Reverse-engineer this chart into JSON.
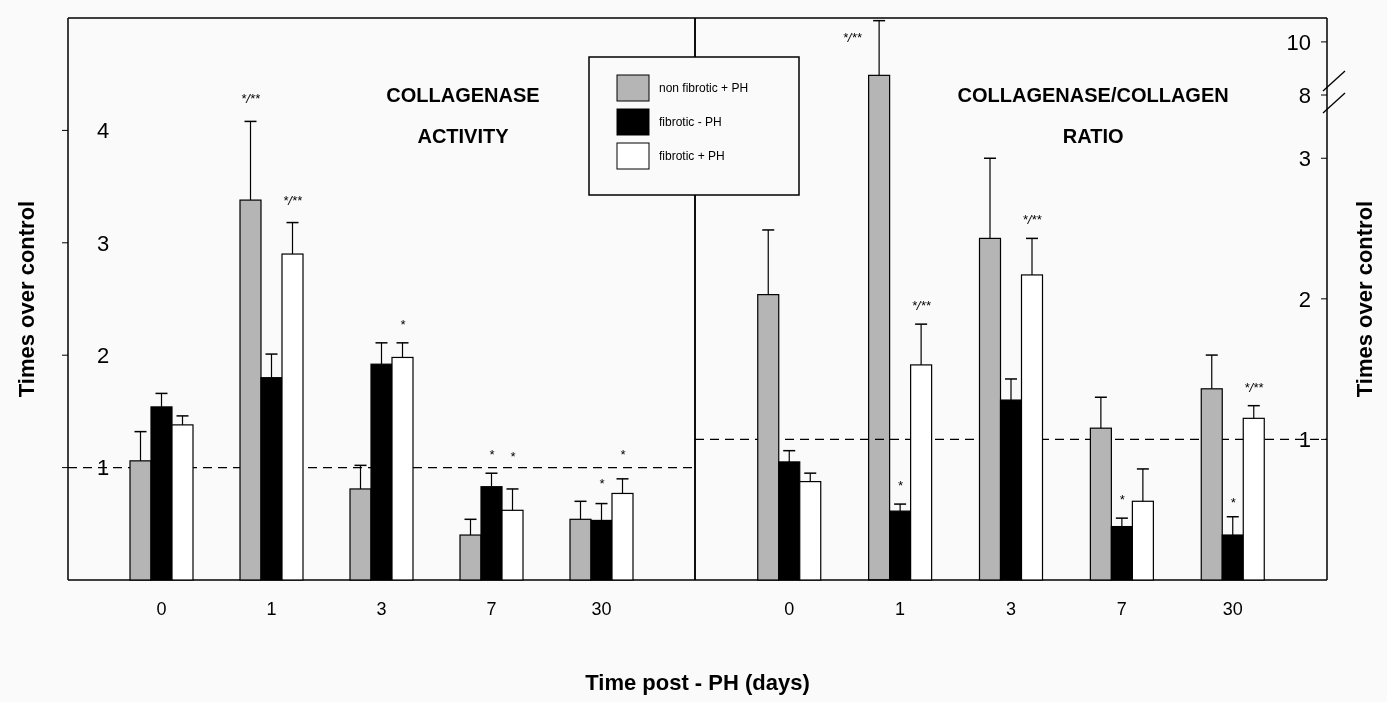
{
  "chart_data": [
    {
      "type": "bar",
      "title": "COLLAGENASE ACTIVITY",
      "xlabel": "Time post - PH (days)",
      "ylabel": "Times over control",
      "categories": [
        "0",
        "1",
        "3",
        "7",
        "30"
      ],
      "ylim": [
        0,
        5
      ],
      "yticks": [
        1,
        2,
        3,
        4
      ],
      "legend": "top right",
      "series": [
        {
          "name": "non fibrotic + PH",
          "color": "#b5b5b5",
          "values": [
            1.06,
            3.38,
            0.81,
            0.4,
            0.54
          ],
          "errors": [
            [
              1.06,
              1.32
            ],
            [
              3.38,
              4.08
            ],
            [
              0.81,
              1.02
            ],
            [
              0.4,
              0.54
            ],
            [
              0.54,
              0.7
            ]
          ]
        },
        {
          "name": "fibrotic - PH",
          "color": "#000000",
          "values": [
            1.54,
            1.8,
            1.92,
            0.83,
            0.53
          ],
          "errors": [
            [
              1.54,
              1.66
            ],
            [
              1.8,
              2.01
            ],
            [
              1.92,
              2.11
            ],
            [
              0.83,
              0.95
            ],
            [
              0.53,
              0.68
            ]
          ]
        },
        {
          "name": "fibrotic + PH",
          "color": "#ffffff",
          "values": [
            1.38,
            2.9,
            1.98,
            0.62,
            0.77
          ],
          "errors": [
            [
              1.38,
              1.46
            ],
            [
              2.9,
              3.18
            ],
            [
              1.98,
              2.11
            ],
            [
              0.62,
              0.81
            ],
            [
              0.77,
              0.9
            ]
          ]
        }
      ],
      "ref_lines": [
        {
          "axis": "y",
          "value": 1,
          "line_style": "dashed"
        }
      ],
      "annotations": [
        "*/**",
        "*/**",
        "*",
        "*",
        "*",
        "*",
        "*"
      ]
    },
    {
      "type": "bar",
      "title": "COLLAGENASE/COLLAGEN RATIO",
      "y2label": "Times over control",
      "categories": [
        "0",
        "1",
        "3",
        "7",
        "30"
      ],
      "y2lim": [
        0,
        3.45
      ],
      "y2ticks": [
        1,
        2,
        3
      ],
      "series": [
        {
          "axis": "y2",
          "color": "#b5b5b5",
          "values": [
            2.03,
            null,
            2.43,
            1.08,
            1.36
          ],
          "errors": [
            [
              2.03,
              2.49
            ],
            null,
            [
              2.43,
              3.0
            ],
            [
              1.08,
              1.3
            ],
            [
              1.36,
              1.6
            ]
          ]
        },
        {
          "axis": "y2",
          "color": "#000000",
          "values": [
            0.84,
            0.49,
            1.28,
            0.38,
            0.32
          ],
          "errors": [
            [
              0.84,
              0.92
            ],
            [
              0.49,
              0.54
            ],
            [
              1.28,
              1.43
            ],
            [
              0.38,
              0.44
            ],
            [
              0.32,
              0.45
            ]
          ]
        },
        {
          "axis": "y2",
          "color": "#ffffff",
          "values": [
            0.7,
            1.53,
            2.17,
            0.56,
            1.15
          ],
          "errors": [
            [
              0.7,
              0.76
            ],
            [
              1.53,
              1.82
            ],
            [
              2.17,
              2.43
            ],
            [
              0.56,
              0.79
            ],
            [
              1.15,
              1.24
            ]
          ]
        }
      ],
      "ref_lines": [
        {
          "axis": "y2",
          "value": 1,
          "line_style": "dashed"
        }
      ],
      "annotations": [
        "*/**",
        "*",
        "*/**",
        "*",
        "*/**",
        "*"
      ]
    },
    {
      "type": "bar",
      "categories": [
        null,
        null,
        null,
        null,
        null
      ],
      "y2lim": [
        8,
        10.9
      ],
      "y2ticks": [
        8,
        10
      ],
      "tick_labels": "y",
      "series": [
        {
          "axis": "y2",
          "color": "#b5b5b5",
          "values": [
            null,
            8.74,
            null,
            null,
            null
          ],
          "errors": [
            null,
            [
              8.74,
              10.8
            ],
            null,
            null,
            null
          ]
        }
      ],
      "annotations": [
        "*/**"
      ]
    }
  ]
}
